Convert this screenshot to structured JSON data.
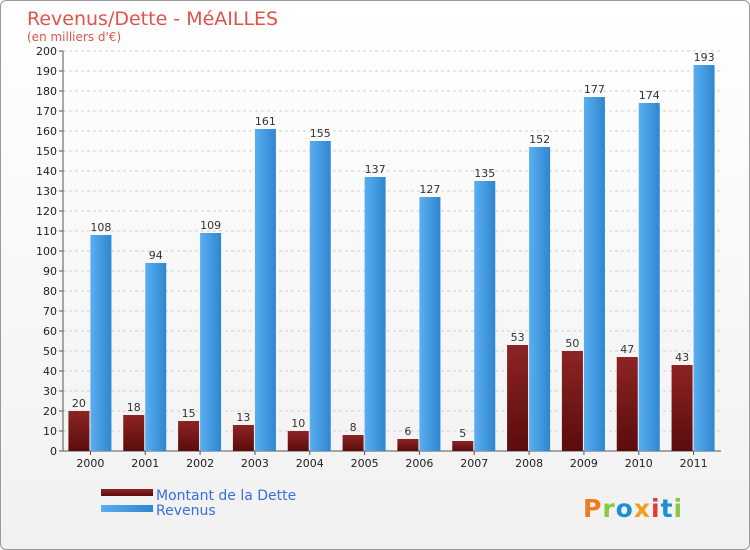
{
  "chart_data": {
    "type": "bar",
    "title": "Revenus/Dette - MéAILLES",
    "subtitle": "(en milliers d'€)",
    "categories": [
      "2000",
      "2001",
      "2002",
      "2003",
      "2004",
      "2005",
      "2006",
      "2007",
      "2008",
      "2009",
      "2010",
      "2011"
    ],
    "series": [
      {
        "name": "Montant de la Dette",
        "color": "#7a1a1a",
        "values": [
          20,
          18,
          15,
          13,
          10,
          8,
          6,
          5,
          53,
          50,
          47,
          43
        ]
      },
      {
        "name": "Revenus",
        "color": "#4b9fe0",
        "values": [
          108,
          94,
          109,
          161,
          155,
          137,
          127,
          135,
          152,
          177,
          174,
          193
        ]
      }
    ],
    "ylim": [
      0,
      200
    ],
    "ytick_step": 10,
    "grid": true,
    "legend_position": "bottom-left"
  },
  "brand": {
    "text": "Proxiti",
    "colors": [
      "#f07b1e",
      "#8cc63f",
      "#1e8fd6",
      "#f0a01e",
      "#e03a3a",
      "#1e8fd6",
      "#8cc63f"
    ]
  }
}
